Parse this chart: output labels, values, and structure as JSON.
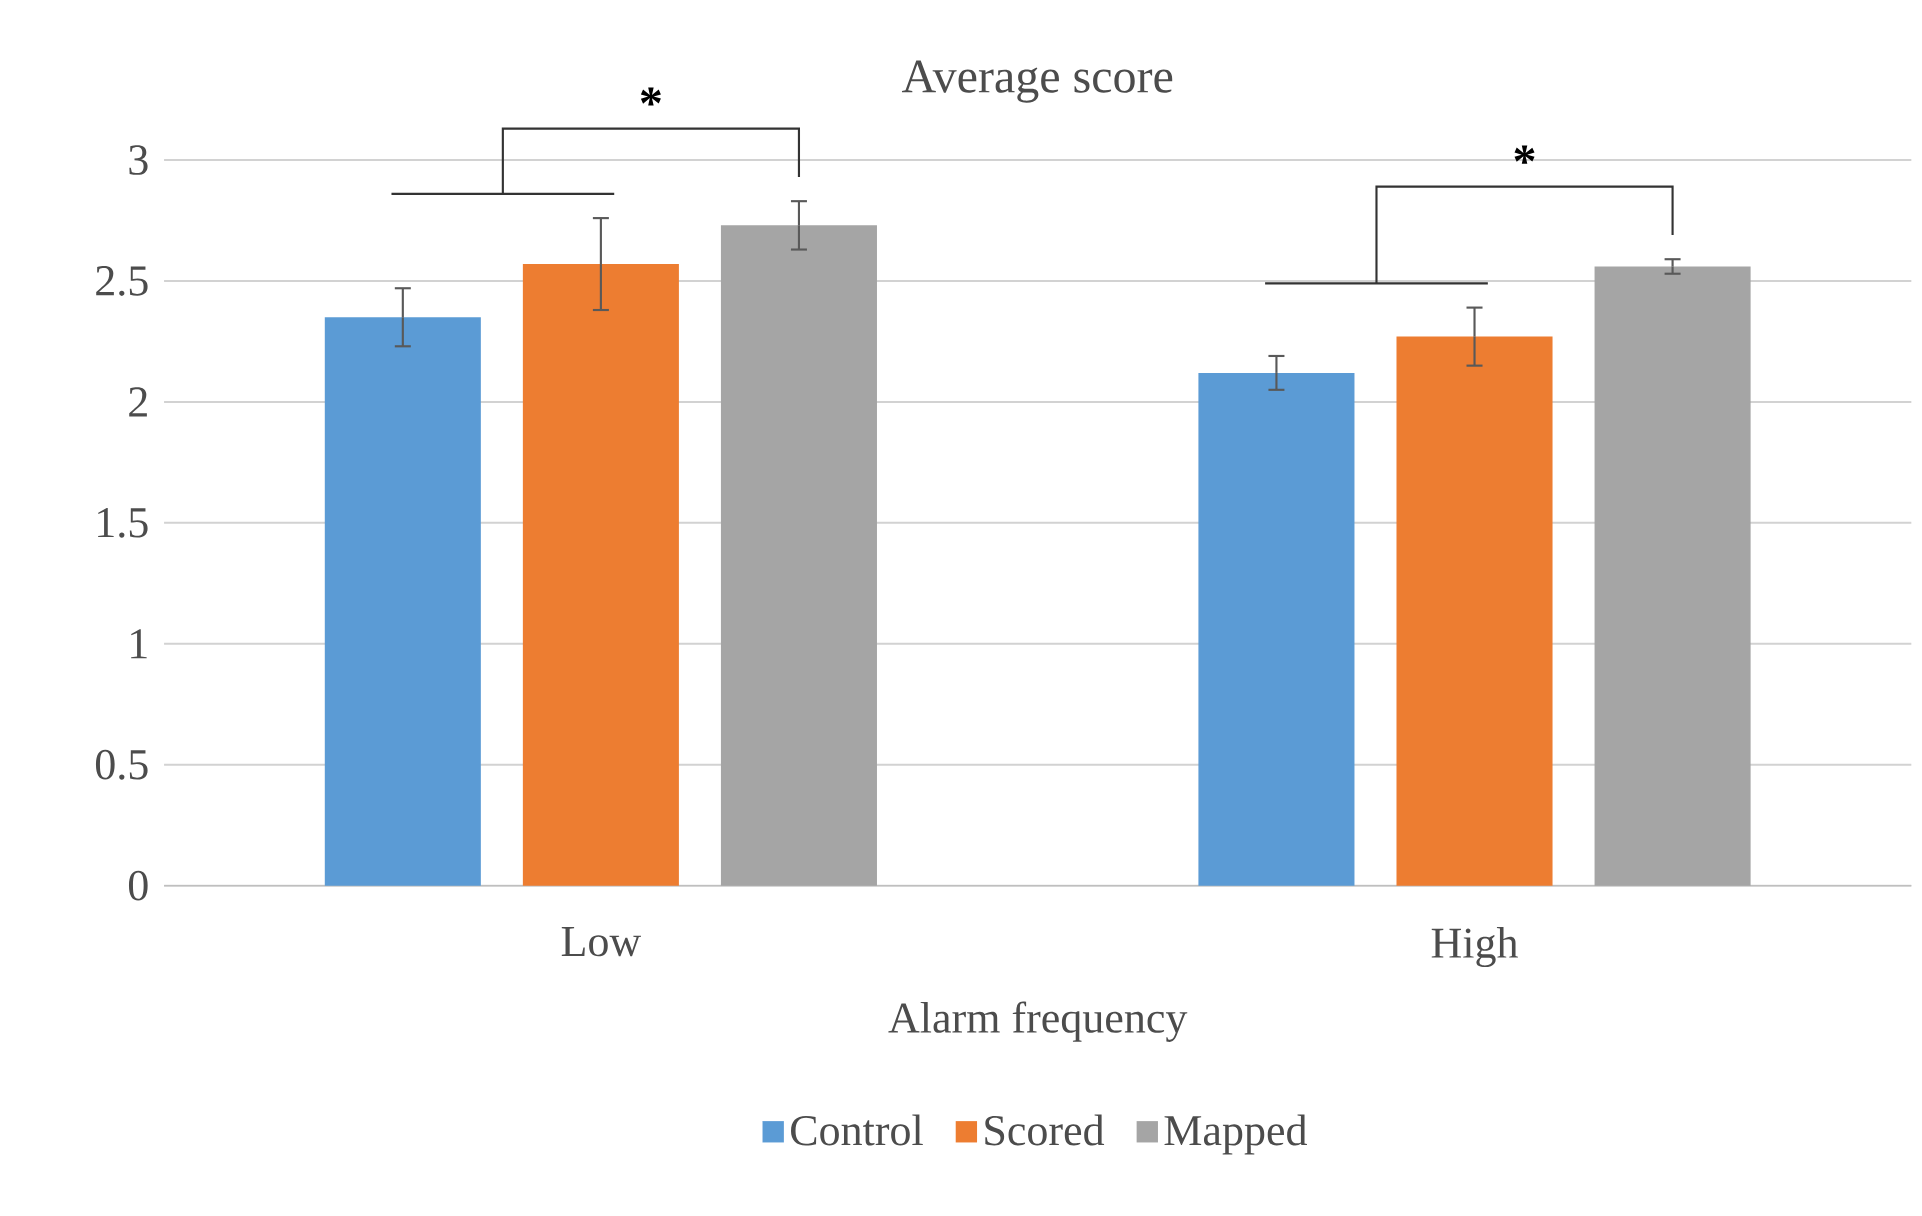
{
  "chart_data": {
    "type": "bar",
    "title": "Average score",
    "xlabel": "Alarm frequency",
    "categories": [
      "Low",
      "High"
    ],
    "series": [
      {
        "name": "Control",
        "color": "#5b9bd5",
        "values": [
          2.35,
          2.12
        ],
        "errors": [
          0.12,
          0.07
        ]
      },
      {
        "name": "Scored",
        "color": "#ed7d31",
        "values": [
          2.57,
          2.27
        ],
        "errors": [
          0.19,
          0.12
        ]
      },
      {
        "name": "Mapped",
        "color": "#a5a5a5",
        "values": [
          2.73,
          2.56
        ],
        "errors": [
          0.1,
          0.03
        ]
      }
    ],
    "ylim": [
      0,
      3
    ],
    "yticks": [
      0,
      0.5,
      1,
      1.5,
      2,
      2.5,
      3
    ],
    "grid": "y",
    "legend": "bottom",
    "annotations": [
      "*",
      "*"
    ]
  }
}
